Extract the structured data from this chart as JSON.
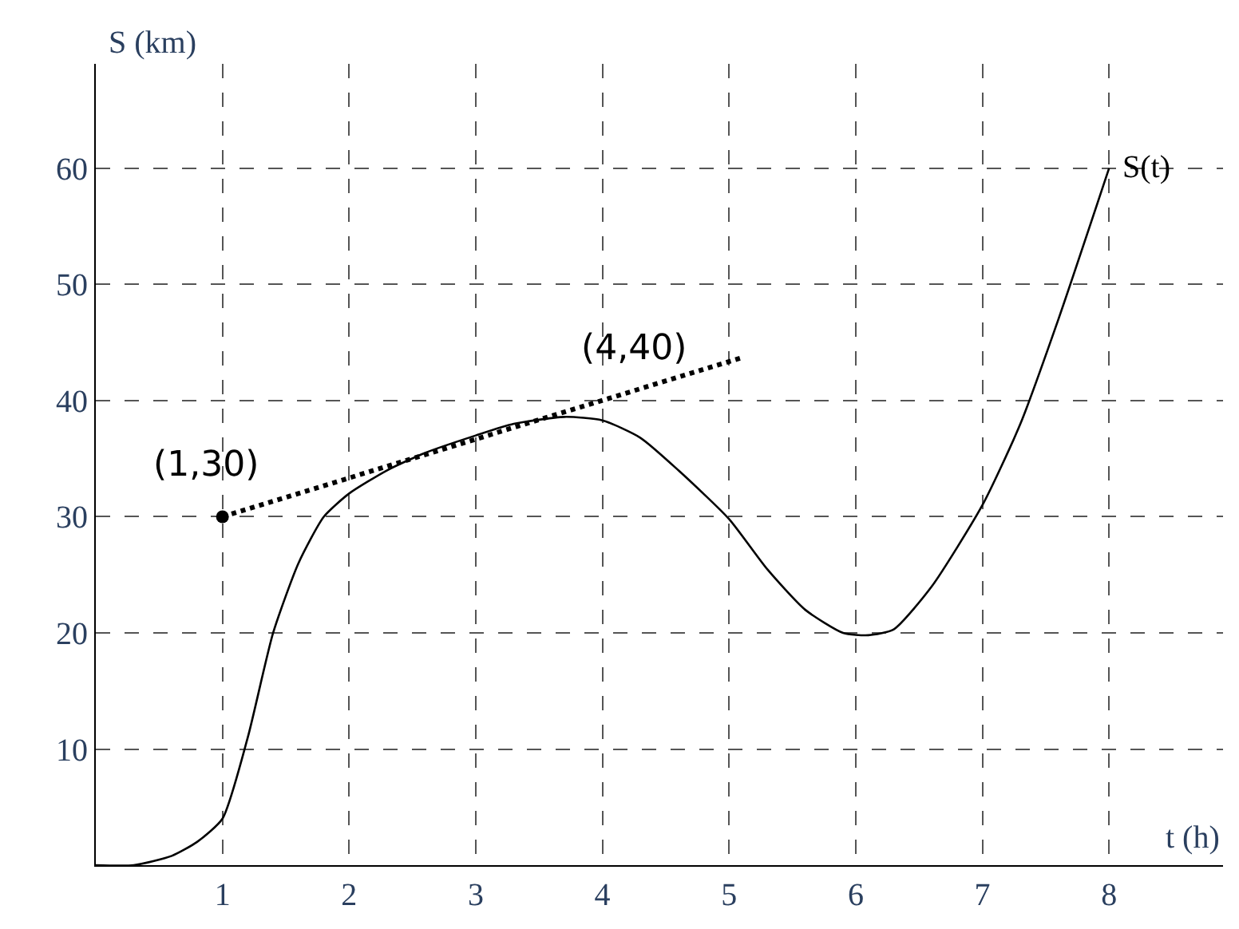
{
  "chart_data": {
    "type": "line",
    "xlabel": "t (h)",
    "ylabel": "S (km)",
    "xlim": [
      0,
      8.9
    ],
    "ylim": [
      0,
      69
    ],
    "xticks": [
      1,
      2,
      3,
      4,
      5,
      6,
      7,
      8
    ],
    "yticks": [
      10,
      20,
      30,
      40,
      50,
      60
    ],
    "grid": true,
    "legend": false,
    "series": [
      {
        "name": "S(t)",
        "color": "#000000",
        "line_style": "solid",
        "marker": "none",
        "x": [
          0,
          0.3,
          0.6,
          0.8,
          1,
          1.2,
          1.4,
          1.6,
          1.8,
          2,
          2.3,
          2.6,
          3,
          3.3,
          3.7,
          4,
          4.3,
          4.6,
          5,
          5.3,
          5.6,
          5.9,
          6.1,
          6.3,
          6.6,
          7,
          7.3,
          7.6,
          8
        ],
        "values": [
          0,
          0,
          0.8,
          2,
          4,
          11,
          20,
          26,
          30,
          32,
          34,
          35.5,
          37,
          38,
          38.6,
          38.3,
          36.8,
          34,
          29.8,
          25.5,
          22,
          20,
          19.8,
          20.3,
          24,
          31,
          38,
          47,
          60
        ]
      },
      {
        "color": "#000000",
        "line_style": "dotted",
        "marker": "none",
        "x": [
          1,
          5.1
        ],
        "values": [
          30,
          43.7
        ]
      },
      {
        "type": "scatter",
        "color": "#000000",
        "marker": "circle",
        "x": [
          1
        ],
        "values": [
          30
        ]
      }
    ],
    "annotations": [
      {
        "text": "(1,30)",
        "x": 1,
        "y": 30
      },
      {
        "text": "(4,40)",
        "x": 4,
        "y": 40
      }
    ]
  }
}
